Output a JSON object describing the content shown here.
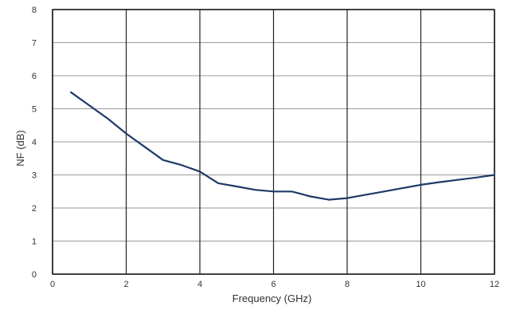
{
  "chart_data": {
    "type": "line",
    "title": "",
    "xlabel": "Frequency (GHz)",
    "ylabel": "NF (dB)",
    "xlim": [
      0,
      12
    ],
    "ylim": [
      0,
      8
    ],
    "xticks": [
      "0",
      "2",
      "4",
      "6",
      "8",
      "10",
      "12"
    ],
    "yticks": [
      "0",
      "1",
      "2",
      "3",
      "4",
      "5",
      "6",
      "7",
      "8"
    ],
    "grid": true,
    "series": [
      {
        "x": [
          0.5,
          1.0,
          1.5,
          2.0,
          2.5,
          3.0,
          3.5,
          4.0,
          4.5,
          5.0,
          5.5,
          6.0,
          6.5,
          7.0,
          7.5,
          8.0,
          8.5,
          9.0,
          9.5,
          10.0,
          10.5,
          11.0,
          11.5,
          12.0
        ],
        "values": [
          5.5,
          5.1,
          4.7,
          4.25,
          3.85,
          3.45,
          3.3,
          3.1,
          2.75,
          2.65,
          2.55,
          2.5,
          2.5,
          2.35,
          2.25,
          2.3,
          2.4,
          2.5,
          2.6,
          2.7,
          2.78,
          2.85,
          2.92,
          3.0
        ],
        "color": "#1f3a68"
      }
    ]
  },
  "colors": {
    "grid_major": "#222222",
    "grid_minor": "#9a9a9a",
    "frame": "#222222"
  }
}
